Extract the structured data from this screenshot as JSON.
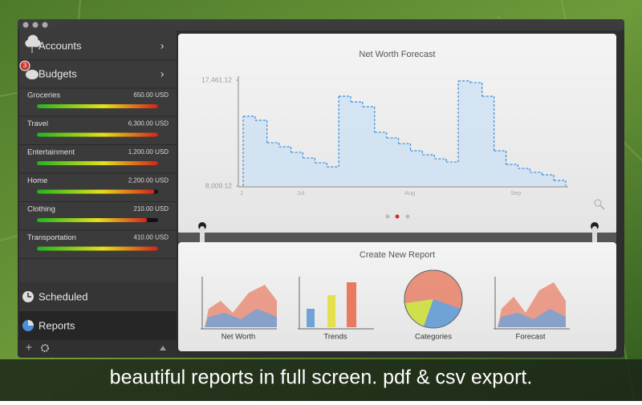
{
  "sidebar": {
    "accounts": "Accounts",
    "budgets": "Budgets",
    "badge": "3",
    "budget_items": [
      {
        "name": "Groceries",
        "amount": "650.00 USD",
        "progress": 100
      },
      {
        "name": "Travel",
        "amount": "6,300.00 USD",
        "progress": 100
      },
      {
        "name": "Entertainment",
        "amount": "1,200.00 USD",
        "progress": 100
      },
      {
        "name": "Home",
        "amount": "2,200.00 USD",
        "progress": 97
      },
      {
        "name": "Clothing",
        "amount": "210.00 USD",
        "progress": 91
      },
      {
        "name": "Transportation",
        "amount": "410.00 USD",
        "progress": 100
      }
    ],
    "scheduled": "Scheduled",
    "reports": "Reports"
  },
  "chart_data": {
    "type": "step",
    "title": "Net Worth Forecast",
    "color": "#3d8fd6",
    "x_labels": [
      "J",
      "Jul",
      "Aug",
      "Sep"
    ],
    "values": [
      14240,
      13880,
      11880,
      11520,
      11020,
      10520,
      10090,
      9730,
      16030,
      15530,
      15100,
      12810,
      12310,
      11800,
      11160,
      10800,
      10440,
      10160,
      17400,
      17250,
      16030,
      11160,
      9940,
      9580,
      9230,
      9010,
      8510
    ],
    "ylim": [
      8009.12,
      17461.12
    ],
    "yticks": [
      {
        "value": 8009.12,
        "label": "8,009.12"
      },
      {
        "value": 17461.12,
        "label": "17,461.12"
      }
    ]
  },
  "create_report": {
    "title": "Create New Report",
    "items": [
      "Net Worth",
      "Trends",
      "Categories",
      "Forecast"
    ]
  },
  "caption": "beautiful reports in full screen. pdf & csv export."
}
